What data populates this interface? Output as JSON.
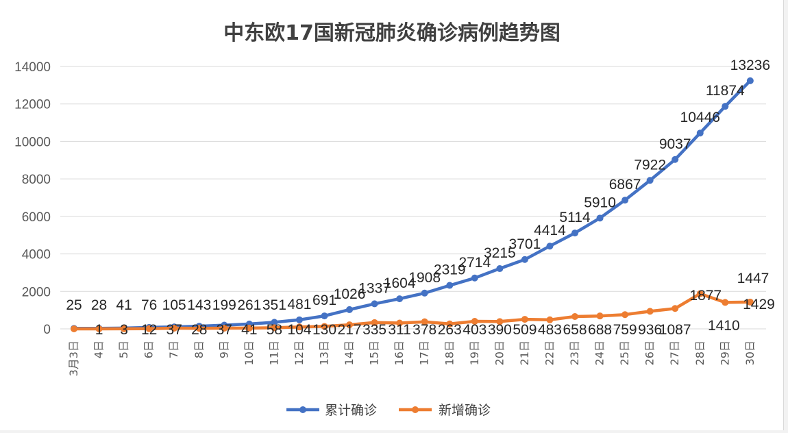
{
  "chart_data": {
    "type": "line",
    "title": "中东欧17国新冠肺炎确诊病例趋势图",
    "categories": [
      "3月3日",
      "4日",
      "5日",
      "6日",
      "7日",
      "8日",
      "9日",
      "10日",
      "11日",
      "12日",
      "13日",
      "14日",
      "15日",
      "16日",
      "17日",
      "18日",
      "19日",
      "20日",
      "21日",
      "22日",
      "23日",
      "24日",
      "25日",
      "26日",
      "27日",
      "28日",
      "29日",
      "30日"
    ],
    "ylim": [
      0,
      14000
    ],
    "yticks": [
      0,
      2000,
      4000,
      6000,
      8000,
      10000,
      12000,
      14000
    ],
    "grid": true,
    "legend_position": "bottom",
    "series": [
      {
        "name": "累计确诊",
        "color": "#4472c4",
        "values": [
          25,
          28,
          41,
          76,
          105,
          143,
          199,
          261,
          351,
          481,
          691,
          1026,
          1337,
          1604,
          1908,
          2319,
          2714,
          3215,
          3701,
          4414,
          5114,
          5910,
          6867,
          7922,
          9037,
          10446,
          11874,
          13236
        ]
      },
      {
        "name": "新增确诊",
        "color": "#ed7d31",
        "values": [
          0,
          1,
          3,
          12,
          37,
          28,
          37,
          41,
          58,
          104,
          130,
          217,
          335,
          311,
          378,
          263,
          403,
          390,
          509,
          483,
          658,
          688,
          759,
          936,
          1087,
          1877,
          1410,
          1429
        ]
      }
    ],
    "extra_labels": [
      "1447"
    ]
  }
}
